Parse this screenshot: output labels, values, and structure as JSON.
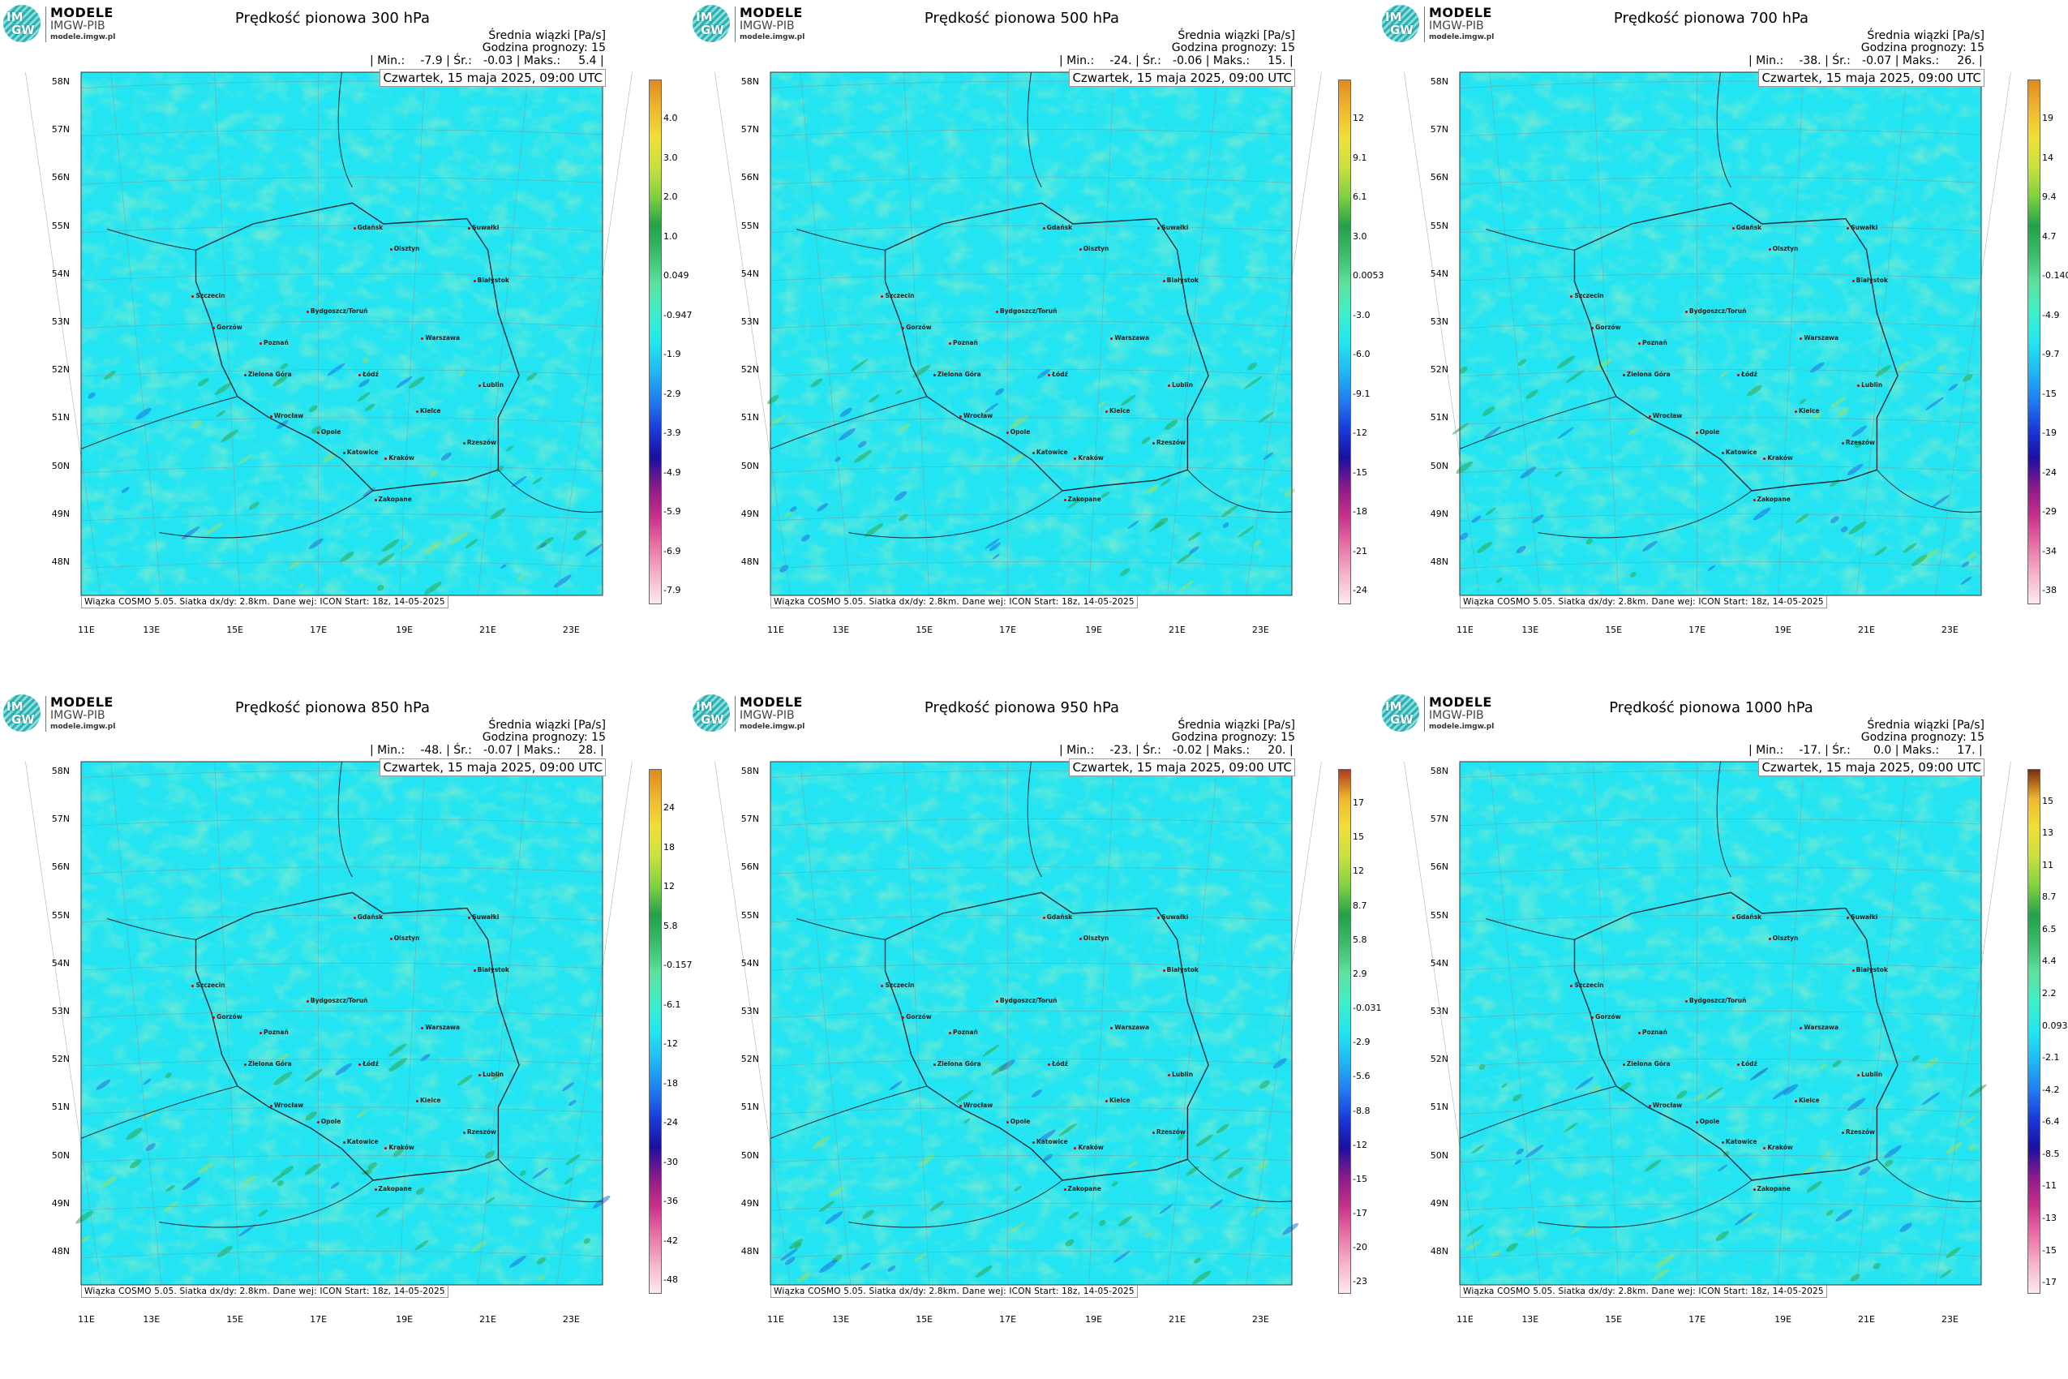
{
  "logo": {
    "line1": "MODELE",
    "line2": "IMGW-PIB",
    "line3": "modele.imgw.pl",
    "mark_top": "IM",
    "mark_bottom": "GW"
  },
  "common": {
    "info1": "Średnia wiązki [Pa/s]",
    "info2": "Godzina prognozy: 15",
    "min_label": "| Min.:",
    "avg_label": "| Śr.:",
    "max_label": "| Maks.:",
    "date": "Czwartek, 15 maja 2025, 09:00 UTC",
    "footer": "Wiązka COSMO 5.05. Siatka dx/dy: 2.8km. Dane wej: ICON Start: 18z, 14-05-2025",
    "lat_labels": [
      "58N",
      "57N",
      "56N",
      "55N",
      "54N",
      "53N",
      "52N",
      "51N",
      "50N",
      "49N",
      "48N"
    ],
    "lon_labels": [
      "11E",
      "13E",
      "15E",
      "17E",
      "19E",
      "21E",
      "23E"
    ],
    "cities": [
      "Gdańsk",
      "Olsztyn",
      "Suwałki",
      "Szczecin",
      "Białystok",
      "Bydgoszcz/Toruń",
      "Gorzów",
      "Poznań",
      "Warszawa",
      "Zielona Góra",
      "Łódź",
      "Lublin",
      "Wrocław",
      "Kielce",
      "Opole",
      "Rzeszów",
      "Katowice",
      "Kraków",
      "Zakopane"
    ]
  },
  "panels": [
    {
      "title": "Prędkość pionowa 300 hPa",
      "min": "-7.9",
      "avg": "-0.03",
      "max": "5.4",
      "colorbar": [
        "4.0",
        "3.0",
        "2.0",
        "1.0",
        "0.049",
        "-0.947",
        "-1.9",
        "-2.9",
        "-3.9",
        "-4.9",
        "-5.9",
        "-6.9",
        "-7.9"
      ],
      "colorbar_top_color": "#e08a1e"
    },
    {
      "title": "Prędkość pionowa 500 hPa",
      "min": "-24.",
      "avg": "-0.06",
      "max": "15.",
      "colorbar": [
        "12",
        "9.1",
        "6.1",
        "3.0",
        "0.0053",
        "-3.0",
        "-6.0",
        "-9.1",
        "-12",
        "-15",
        "-18",
        "-21",
        "-24"
      ],
      "colorbar_top_color": "#e08a1e"
    },
    {
      "title": "Prędkość pionowa 700 hPa",
      "min": "-38.",
      "avg": "-0.07",
      "max": "26.",
      "colorbar": [
        "19",
        "14",
        "9.4",
        "4.7",
        "-0.140",
        "-4.9",
        "-9.7",
        "-15",
        "-19",
        "-24",
        "-29",
        "-34",
        "-38"
      ],
      "colorbar_top_color": "#e08a1e"
    },
    {
      "title": "Prędkość pionowa 850 hPa",
      "min": "-48.",
      "avg": "-0.07",
      "max": "28.",
      "colorbar": [
        "24",
        "18",
        "12",
        "5.8",
        "-0.157",
        "-6.1",
        "-12",
        "-18",
        "-24",
        "-30",
        "-36",
        "-42",
        "-48"
      ],
      "colorbar_top_color": "#e08a1e"
    },
    {
      "title": "Prędkość pionowa 950 hPa",
      "min": "-23.",
      "avg": "-0.02",
      "max": "20.",
      "colorbar": [
        "17",
        "15",
        "12",
        "8.7",
        "5.8",
        "2.9",
        "-0.031",
        "-2.9",
        "-5.6",
        "-8.8",
        "-12",
        "-15",
        "-17",
        "-20",
        "-23"
      ],
      "colorbar_top_color": "#b03a1a"
    },
    {
      "title": "Prędkość pionowa 1000 hPa",
      "min": "-17.",
      "avg": "0.0",
      "max": "17.",
      "colorbar": [
        "15",
        "13",
        "11",
        "8.7",
        "6.5",
        "4.4",
        "2.2",
        "0.093",
        "-2.1",
        "-4.2",
        "-6.4",
        "-8.5",
        "-11",
        "-13",
        "-15",
        "-17"
      ],
      "colorbar_top_color": "#7a2a10"
    }
  ]
}
